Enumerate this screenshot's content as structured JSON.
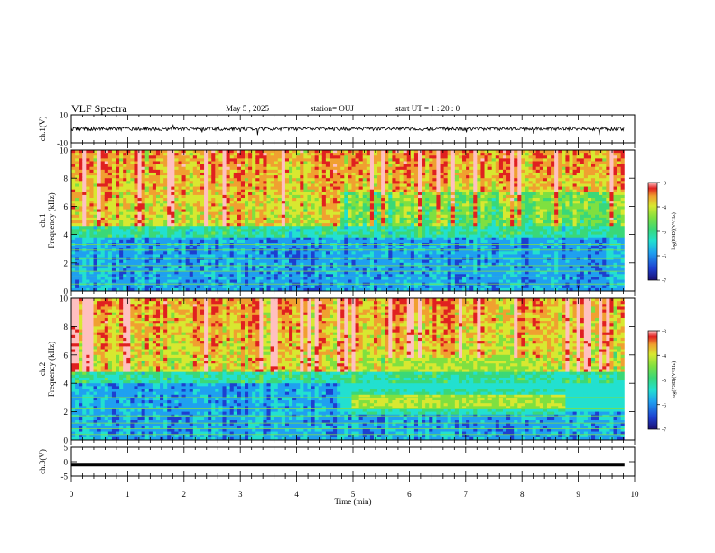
{
  "header": {
    "title": "VLF Spectra",
    "date": "May 5 , 2025",
    "station": "station= OUJ",
    "start": "start UT = 1 : 20 : 0"
  },
  "colors": {
    "colormap": [
      "#1c1070",
      "#1d3fd0",
      "#1fa0f0",
      "#22e0d0",
      "#3ad878",
      "#7fe040",
      "#d8e830",
      "#f0a030",
      "#e02020",
      "#ffc0c0"
    ],
    "trace": "#000000"
  },
  "chart_data": [
    {
      "type": "line",
      "name": "ch1-waveform",
      "ylabel": "ch.1(V)",
      "ylim": [
        -10,
        10
      ],
      "yticks": [
        "10",
        "-10"
      ],
      "xlim": [
        0,
        10
      ],
      "description_level": 0,
      "noise_amplitude": 1.2
    },
    {
      "type": "heatmap",
      "name": "ch1-spectrogram",
      "ylabel": "ch.1 Frequency (kHz)",
      "ylim": [
        0,
        10
      ],
      "yticks": [
        "0",
        "2",
        "4",
        "6",
        "8",
        "10"
      ],
      "xlim": [
        0,
        10
      ],
      "colorbar": {
        "label": "log(PSD)(V²/Hz)",
        "range": [
          -7,
          -3
        ],
        "ticks": [
          "-3",
          "-4",
          "-5",
          "-6",
          "-7"
        ]
      },
      "features": {
        "low_band_top_khz": 4.5,
        "interference_lines_khz": [
          0.5,
          1.0,
          1.4,
          1.8,
          2.3,
          2.9,
          3.3
        ]
      }
    },
    {
      "type": "heatmap",
      "name": "ch2-spectrogram",
      "ylabel": "ch.2 Frequency (kHz)",
      "ylim": [
        0,
        10
      ],
      "yticks": [
        "0",
        "2",
        "4",
        "6",
        "8",
        "10"
      ],
      "xlim": [
        0,
        10
      ],
      "colorbar": {
        "label": "log(PSD)(V²/Hz)",
        "range": [
          -7,
          -3
        ],
        "ticks": [
          "-3",
          "-4",
          "-5",
          "-6",
          "-7"
        ]
      },
      "features": {
        "low_band_top_khz": 4.8,
        "emission_bands": [
          {
            "start_min": 5.6,
            "end_min": 8.3,
            "freq_khz": 5.3
          },
          {
            "start_min": 5.0,
            "end_min": 8.8,
            "freq_khz": 2.7
          }
        ],
        "interference_lines_khz": [
          0.4,
          0.8,
          1.2,
          1.7,
          2.2,
          3.0,
          3.6
        ]
      }
    },
    {
      "type": "line",
      "name": "ch3-waveform",
      "ylabel": "ch.3(V)",
      "ylim": [
        -5,
        5
      ],
      "yticks": [
        "5",
        "0",
        "-5"
      ],
      "xlim": [
        0,
        10
      ],
      "level": -1.0
    }
  ],
  "xaxis": {
    "label": "Time (min)",
    "ticks": [
      "0",
      "1",
      "2",
      "3",
      "4",
      "5",
      "6",
      "7",
      "8",
      "9",
      "10"
    ]
  }
}
